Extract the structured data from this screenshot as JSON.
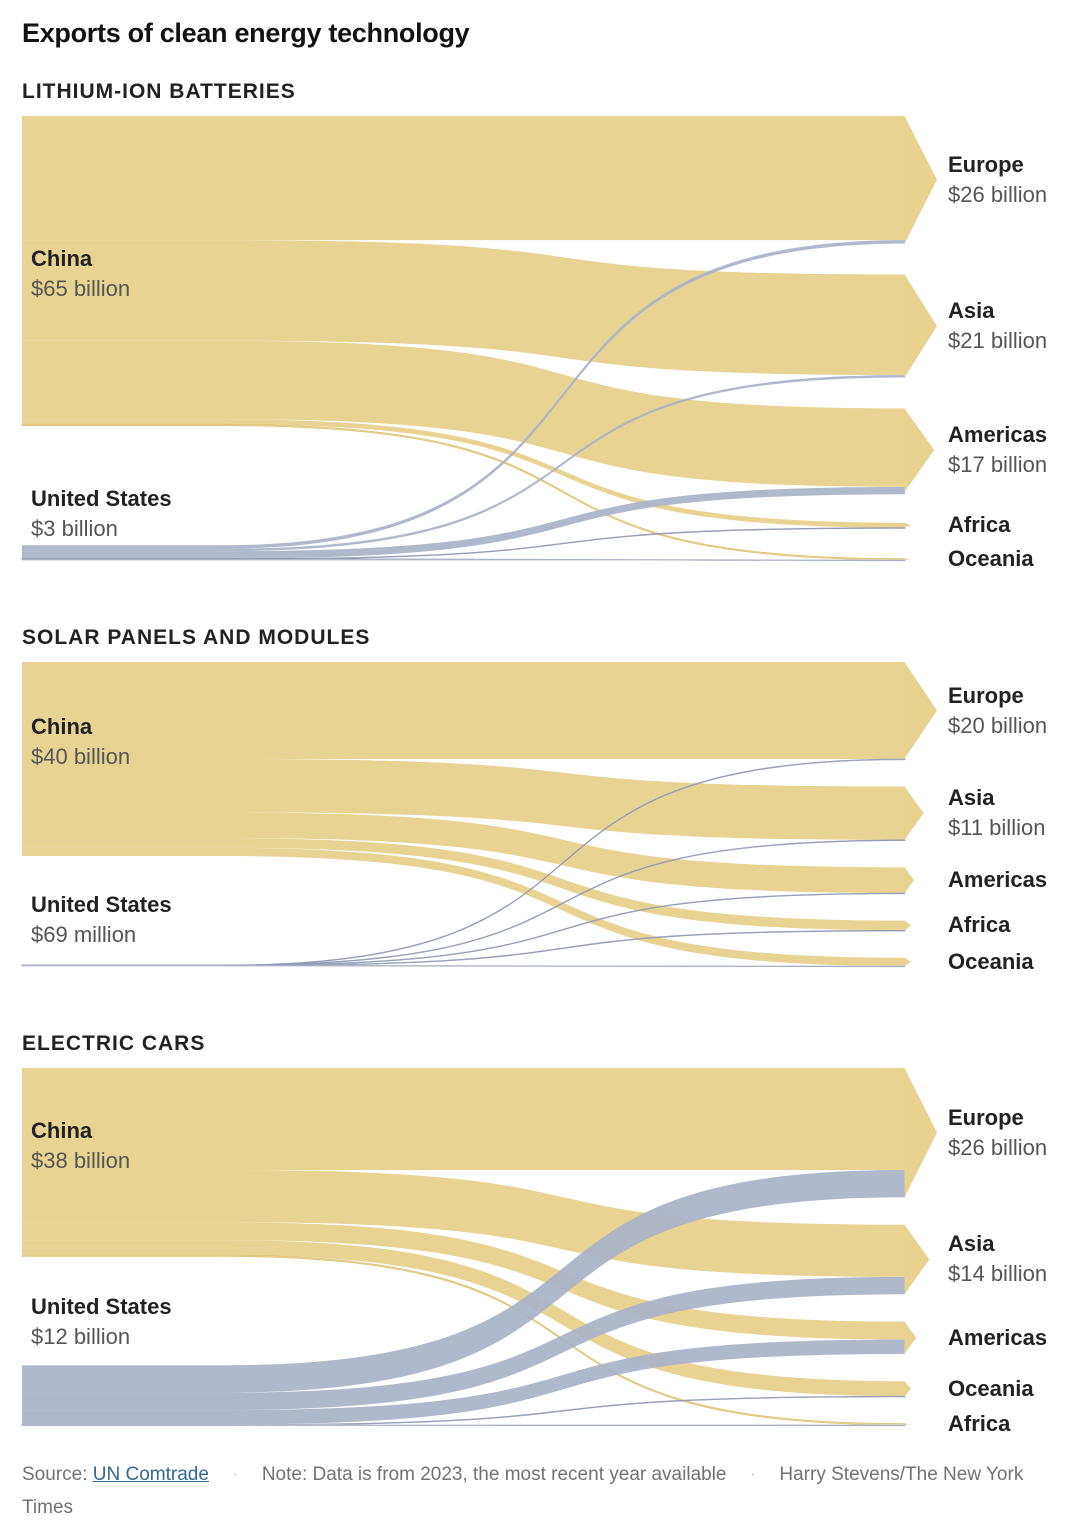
{
  "title": "Exports of clean energy technology",
  "colors": {
    "china": "#e8d28f",
    "united_states": "#a9b2c8"
  },
  "chart_data": [
    {
      "type": "sankey",
      "title": "LITHIUM-ION BATTERIES",
      "sources": [
        {
          "name": "China",
          "label": "$65 billion",
          "value": 65
        },
        {
          "name": "United States",
          "label": "$3 billion",
          "value": 3
        }
      ],
      "targets": [
        {
          "name": "Europe",
          "label": "$26 billion",
          "value": 26
        },
        {
          "name": "Asia",
          "label": "$21 billion",
          "value": 21
        },
        {
          "name": "Americas",
          "label": "$17 billion",
          "value": 17
        },
        {
          "name": "Africa",
          "label": "",
          "value": 1.0
        },
        {
          "name": "Oceania",
          "label": "",
          "value": 0.3
        }
      ],
      "flows": [
        {
          "source": "China",
          "target": "Europe",
          "value": 25.3
        },
        {
          "source": "China",
          "target": "Asia",
          "value": 20.5
        },
        {
          "source": "China",
          "target": "Americas",
          "value": 16.0
        },
        {
          "source": "China",
          "target": "Africa",
          "value": 1.0
        },
        {
          "source": "China",
          "target": "Oceania",
          "value": 0.3
        },
        {
          "source": "United States",
          "target": "Europe",
          "value": 0.7
        },
        {
          "source": "United States",
          "target": "Asia",
          "value": 0.5
        },
        {
          "source": "United States",
          "target": "Americas",
          "value": 1.5
        },
        {
          "source": "United States",
          "target": "Africa",
          "value": 0.02
        },
        {
          "source": "United States",
          "target": "Oceania",
          "value": 0.05
        }
      ]
    },
    {
      "type": "sankey",
      "title": "SOLAR PANELS AND MODULES",
      "sources": [
        {
          "name": "China",
          "label": "$40 billion",
          "value": 40
        },
        {
          "name": "United States",
          "label": "$69 million",
          "value": 0.069
        }
      ],
      "targets": [
        {
          "name": "Europe",
          "label": "$20 billion",
          "value": 20
        },
        {
          "name": "Asia",
          "label": "$11 billion",
          "value": 11
        },
        {
          "name": "Americas",
          "label": "",
          "value": 5.3
        },
        {
          "name": "Africa",
          "label": "",
          "value": 2.0
        },
        {
          "name": "Oceania",
          "label": "",
          "value": 1.7
        }
      ],
      "flows": [
        {
          "source": "China",
          "target": "Europe",
          "value": 20
        },
        {
          "source": "China",
          "target": "Asia",
          "value": 11
        },
        {
          "source": "China",
          "target": "Americas",
          "value": 5.3
        },
        {
          "source": "China",
          "target": "Africa",
          "value": 2.0
        },
        {
          "source": "China",
          "target": "Oceania",
          "value": 1.7
        },
        {
          "source": "United States",
          "target": "Europe",
          "value": 0.01
        },
        {
          "source": "United States",
          "target": "Asia",
          "value": 0.02
        },
        {
          "source": "United States",
          "target": "Americas",
          "value": 0.03
        },
        {
          "source": "United States",
          "target": "Africa",
          "value": 0.005
        },
        {
          "source": "United States",
          "target": "Oceania",
          "value": 0.004
        }
      ]
    },
    {
      "type": "sankey",
      "title": "ELECTRIC CARS",
      "sources": [
        {
          "name": "China",
          "label": "$38 billion",
          "value": 38
        },
        {
          "name": "United States",
          "label": "$12 billion",
          "value": 12
        }
      ],
      "targets": [
        {
          "name": "Europe",
          "label": "$26 billion",
          "value": 26
        },
        {
          "name": "Asia",
          "label": "$14 billion",
          "value": 14
        },
        {
          "name": "Americas",
          "label": "",
          "value": 6.5
        },
        {
          "name": "Oceania",
          "label": "",
          "value": 3.0
        },
        {
          "name": "Africa",
          "label": "",
          "value": 0.3
        }
      ],
      "flows": [
        {
          "source": "China",
          "target": "Europe",
          "value": 20.5
        },
        {
          "source": "China",
          "target": "Asia",
          "value": 10.5
        },
        {
          "source": "China",
          "target": "Americas",
          "value": 3.6
        },
        {
          "source": "China",
          "target": "Oceania",
          "value": 3.0
        },
        {
          "source": "China",
          "target": "Africa",
          "value": 0.3
        },
        {
          "source": "United States",
          "target": "Europe",
          "value": 5.5
        },
        {
          "source": "United States",
          "target": "Asia",
          "value": 3.5
        },
        {
          "source": "United States",
          "target": "Americas",
          "value": 2.9
        },
        {
          "source": "United States",
          "target": "Oceania",
          "value": 0.05
        },
        {
          "source": "United States",
          "target": "Africa",
          "value": 0.02
        }
      ]
    }
  ],
  "footer": {
    "source_prefix": "Source:",
    "source_link": "UN Comtrade",
    "note": "Note: Data is from 2023, the most recent year available",
    "credit": "Harry Stevens/The New York Times"
  }
}
